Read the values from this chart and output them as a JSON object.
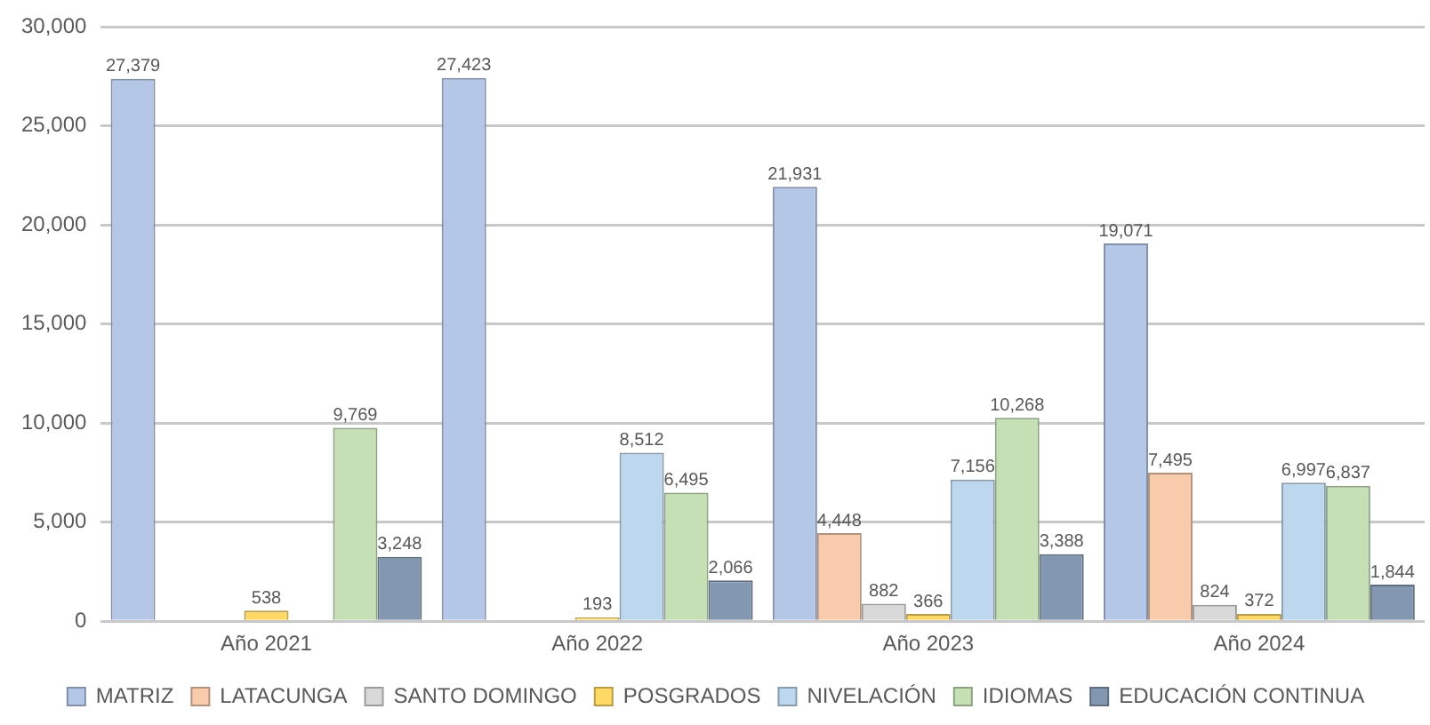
{
  "chart_data": {
    "type": "bar",
    "categories": [
      "Año 2021",
      "Año 2022",
      "Año 2023",
      "Año 2024"
    ],
    "series": [
      {
        "name": "MATRIZ",
        "color": "#b4c7e7",
        "values": [
          27379,
          27423,
          21931,
          19071
        ],
        "value_labels": [
          "27,379",
          "27,423",
          "21,931",
          "19,071"
        ]
      },
      {
        "name": "LATACUNGA",
        "color": "#f8cbad",
        "values": [
          null,
          null,
          4448,
          7495
        ],
        "value_labels": [
          null,
          null,
          "4,448",
          "7,495"
        ]
      },
      {
        "name": "SANTO DOMINGO",
        "color": "#d9d9d9",
        "values": [
          null,
          null,
          882,
          824
        ],
        "value_labels": [
          null,
          null,
          "882",
          "824"
        ]
      },
      {
        "name": "POSGRADOS",
        "color": "#ffd966",
        "values": [
          538,
          193,
          366,
          372
        ],
        "value_labels": [
          "538",
          "193",
          "366",
          "372"
        ]
      },
      {
        "name": "NIVELACIÓN",
        "color": "#bdd7ee",
        "values": [
          null,
          8512,
          7156,
          6997
        ],
        "value_labels": [
          null,
          "8,512",
          "7,156",
          "6,997"
        ]
      },
      {
        "name": "IDIOMAS",
        "color": "#c5e0b4",
        "values": [
          9769,
          6495,
          10268,
          6837
        ],
        "value_labels": [
          "9,769",
          "6,495",
          "10,268",
          "6,837"
        ]
      },
      {
        "name": "EDUCACIÓN CONTINUA",
        "color": "#8497b0",
        "values": [
          3248,
          2066,
          3388,
          1844
        ],
        "value_labels": [
          "3,248",
          "2,066",
          "3,388",
          "1,844"
        ]
      }
    ],
    "ylim": [
      0,
      30000
    ],
    "yticks": [
      0,
      {
        "value": 5000,
        "label": "5,000"
      },
      {
        "value": 10000,
        "label": "10,000"
      },
      {
        "value": 15000,
        "label": "15,000"
      },
      {
        "value": 20000,
        "label": "20,000"
      },
      {
        "value": 25000,
        "label": "25,000"
      },
      {
        "value": 30000,
        "label": "30,000"
      }
    ],
    "grid": "y",
    "legend": "bottom"
  }
}
